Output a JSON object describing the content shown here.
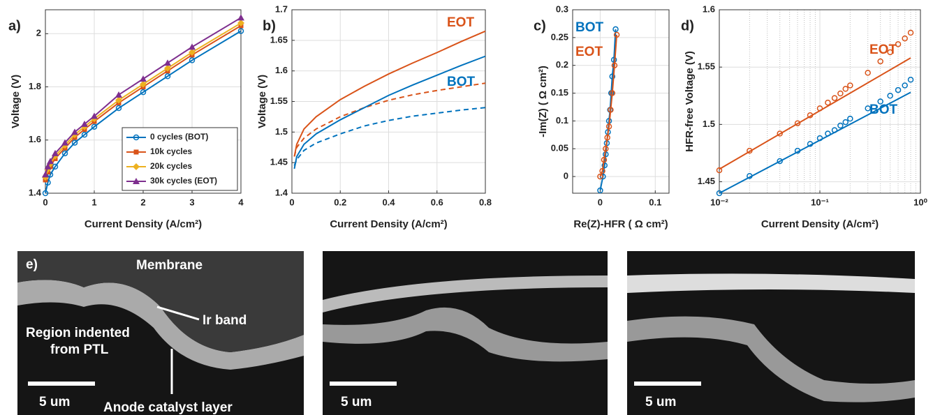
{
  "chart_data": [
    {
      "type": "line",
      "panel_label": "a)",
      "x_label": "Current Density (A/cm²)",
      "y_label": "Voltage (V)",
      "xlim": [
        0,
        4
      ],
      "ylim": [
        1.4,
        2.09
      ],
      "xticks": [
        0,
        1,
        2,
        3,
        4
      ],
      "yticks": [
        1.4,
        1.6,
        1.8,
        2
      ],
      "grid": true,
      "legend": "lower right",
      "x": [
        0,
        0.05,
        0.1,
        0.2,
        0.4,
        0.6,
        0.8,
        1.0,
        1.5,
        2,
        2.5,
        3,
        4
      ],
      "series": [
        {
          "name": "0 cycles (BOT)",
          "color": "#0072bd",
          "marker": "circle",
          "dash": "solid",
          "values": [
            1.4,
            1.44,
            1.47,
            1.5,
            1.55,
            1.59,
            1.62,
            1.65,
            1.72,
            1.78,
            1.84,
            1.9,
            2.01
          ]
        },
        {
          "name": "10k cycles",
          "color": "#d95319",
          "marker": "square",
          "dash": "solid",
          "values": [
            1.45,
            1.48,
            1.5,
            1.53,
            1.57,
            1.61,
            1.64,
            1.67,
            1.74,
            1.8,
            1.86,
            1.92,
            2.03
          ]
        },
        {
          "name": "20k cycles",
          "color": "#edb120",
          "marker": "diamond",
          "dash": "solid",
          "values": [
            1.46,
            1.49,
            1.51,
            1.54,
            1.58,
            1.62,
            1.65,
            1.68,
            1.75,
            1.81,
            1.87,
            1.93,
            2.04
          ]
        },
        {
          "name": "30k cycles (EOT)",
          "color": "#7e2f8e",
          "marker": "triangle",
          "dash": "solid",
          "values": [
            1.47,
            1.5,
            1.52,
            1.55,
            1.59,
            1.63,
            1.66,
            1.69,
            1.77,
            1.83,
            1.89,
            1.95,
            2.06
          ]
        }
      ]
    },
    {
      "type": "line",
      "panel_label": "b)",
      "x_label": "Current Density (A/cm²)",
      "y_label": "Voltage (V)",
      "xlim": [
        0,
        0.8
      ],
      "ylim": [
        1.4,
        1.7
      ],
      "xticks": [
        0,
        0.2,
        0.4,
        0.6,
        0.8
      ],
      "yticks": [
        1.4,
        1.45,
        1.5,
        1.55,
        1.6,
        1.65,
        1.7
      ],
      "grid": true,
      "x": [
        0.01,
        0.02,
        0.05,
        0.1,
        0.2,
        0.3,
        0.4,
        0.5,
        0.6,
        0.7,
        0.8
      ],
      "series": [
        {
          "color": "#d95319",
          "marker": "none",
          "dash": "solid",
          "values": [
            1.46,
            1.48,
            1.505,
            1.525,
            1.553,
            1.575,
            1.595,
            1.613,
            1.63,
            1.648,
            1.665
          ]
        },
        {
          "color": "#d95319",
          "marker": "none",
          "dash": "dashed",
          "values": [
            1.46,
            1.475,
            1.49,
            1.505,
            1.525,
            1.54,
            1.552,
            1.561,
            1.568,
            1.574,
            1.58
          ]
        },
        {
          "color": "#0072bd",
          "marker": "none",
          "dash": "solid",
          "values": [
            1.44,
            1.46,
            1.48,
            1.497,
            1.52,
            1.54,
            1.56,
            1.577,
            1.593,
            1.609,
            1.624
          ]
        },
        {
          "color": "#0072bd",
          "marker": "none",
          "dash": "dashed",
          "values": [
            1.445,
            1.455,
            1.47,
            1.482,
            1.497,
            1.51,
            1.519,
            1.526,
            1.531,
            1.536,
            1.54
          ]
        }
      ],
      "annotations": [
        {
          "text": "EOT",
          "color": "#d95319"
        },
        {
          "text": "BOT",
          "color": "#0072bd"
        }
      ]
    },
    {
      "type": "scatter",
      "panel_label": "c)",
      "x_label": "Re(Z)-HFR ( Ω cm²)",
      "y_label": "-Im(Z) ( Ω cm²)",
      "xlim": [
        -0.05,
        0.125
      ],
      "ylim": [
        -0.03,
        0.3
      ],
      "xticks": [
        0,
        0.1
      ],
      "yticks": [
        0,
        0.05,
        0.1,
        0.15,
        0.2,
        0.25,
        0.3
      ],
      "grid": true,
      "series": [
        {
          "color": "#0072bd",
          "marker": "circle",
          "dash": "solid",
          "x": [
            0,
            0.005,
            0.008,
            0.01,
            0.012,
            0.014,
            0.016,
            0.018,
            0.02,
            0.022,
            0.025,
            0.028
          ],
          "values": [
            -0.025,
            0,
            0.02,
            0.04,
            0.06,
            0.08,
            0.1,
            0.12,
            0.15,
            0.18,
            0.21,
            0.265
          ]
        },
        {
          "color": "#d95319",
          "marker": "circle",
          "dash": "solid",
          "x": [
            0,
            0.004,
            0.007,
            0.01,
            0.013,
            0.016,
            0.019,
            0.022,
            0.026,
            0.03
          ],
          "values": [
            0,
            0.01,
            0.03,
            0.05,
            0.07,
            0.09,
            0.12,
            0.15,
            0.2,
            0.255
          ]
        }
      ],
      "annotations": [
        {
          "text": "BOT",
          "color": "#0072bd"
        },
        {
          "text": "EOT",
          "color": "#d95319"
        }
      ]
    },
    {
      "type": "scatter",
      "panel_label": "d)",
      "x_label": "Current Density (A/cm²)",
      "y_label": "HFR-free Voltage (V)",
      "xscale": "log",
      "xlim": [
        0.01,
        1
      ],
      "ylim": [
        1.44,
        1.6
      ],
      "xticks": [
        {
          "value": 0.01,
          "label": "10⁻²"
        },
        {
          "value": 0.1,
          "label": "10⁻¹"
        },
        {
          "value": 1,
          "label": "10⁰"
        }
      ],
      "yticks": [
        1.45,
        1.5,
        1.55,
        1.6
      ],
      "grid": true,
      "series": [
        {
          "color": "#0072bd",
          "marker": "circle",
          "dash": "none",
          "x": [
            0.01,
            0.02,
            0.04,
            0.06,
            0.08,
            0.1,
            0.12,
            0.14,
            0.16,
            0.18,
            0.2,
            0.3,
            0.4,
            0.5,
            0.6,
            0.7,
            0.8
          ],
          "values": [
            1.44,
            1.455,
            1.468,
            1.477,
            1.483,
            1.488,
            1.492,
            1.495,
            1.499,
            1.502,
            1.505,
            1.514,
            1.52,
            1.525,
            1.53,
            1.534,
            1.539
          ]
        },
        {
          "color": "#d95319",
          "marker": "circle",
          "dash": "none",
          "x": [
            0.01,
            0.02,
            0.04,
            0.06,
            0.08,
            0.1,
            0.12,
            0.14,
            0.16,
            0.18,
            0.2,
            0.3,
            0.4,
            0.5,
            0.6,
            0.7,
            0.8
          ],
          "values": [
            1.46,
            1.477,
            1.492,
            1.501,
            1.508,
            1.514,
            1.519,
            1.523,
            1.527,
            1.531,
            1.534,
            1.545,
            1.555,
            1.563,
            1.57,
            1.575,
            1.58
          ]
        },
        {
          "color": "#0072bd",
          "marker": "none",
          "dash": "solid",
          "x": [
            0.01,
            0.8
          ],
          "values": [
            1.44,
            1.528
          ]
        },
        {
          "color": "#d95319",
          "marker": "none",
          "dash": "solid",
          "x": [
            0.01,
            0.8
          ],
          "values": [
            1.461,
            1.558
          ]
        }
      ],
      "annotations": [
        {
          "text": "EOT",
          "color": "#d95319"
        },
        {
          "text": "BOT",
          "color": "#0072bd"
        }
      ]
    }
  ],
  "micrographs": {
    "panel_label": "e)",
    "annotations": [
      "Membrane",
      "Ir band",
      "Region indented",
      "from PTL",
      "Anode catalyst layer"
    ],
    "scale_bars": [
      "5 um",
      "5 um",
      "5 um"
    ]
  }
}
